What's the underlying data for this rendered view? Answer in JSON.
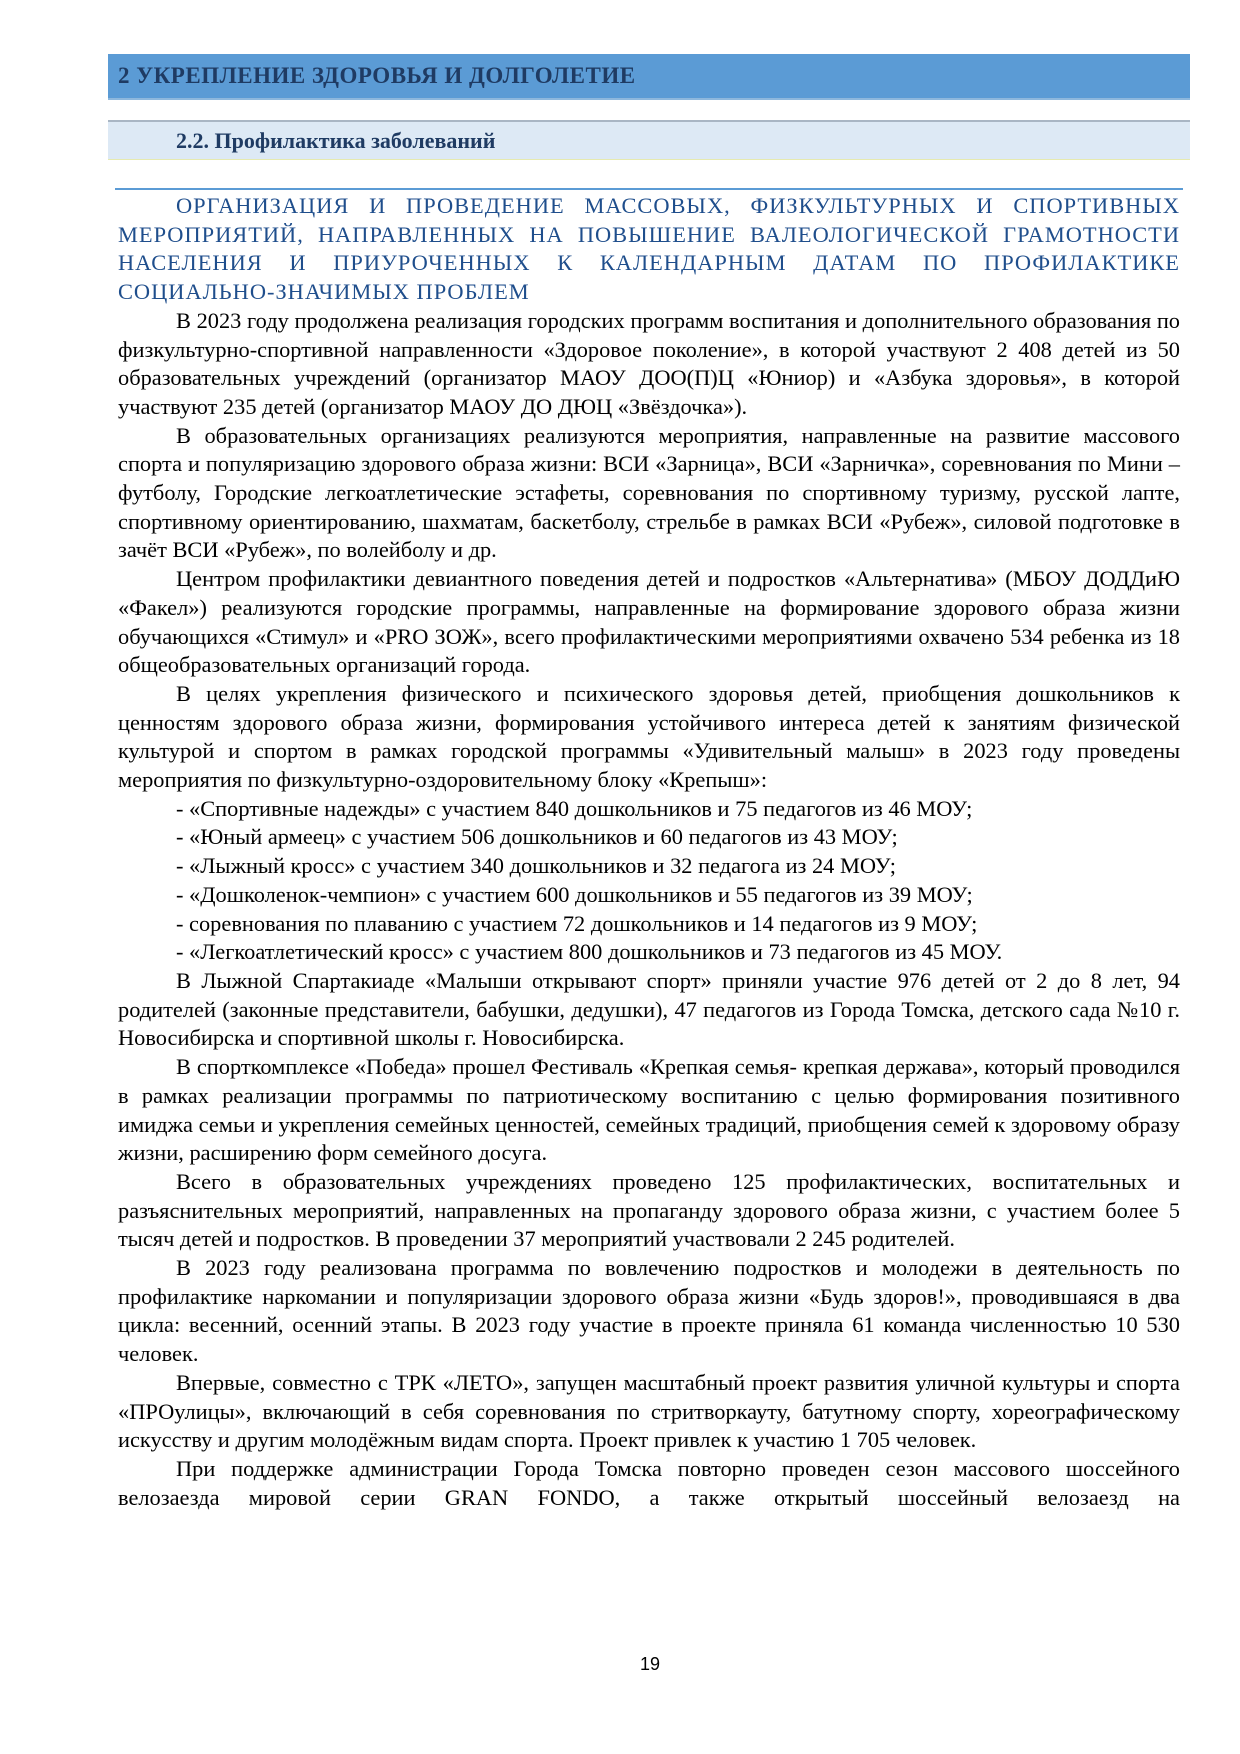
{
  "section_title": "2 УКРЕПЛЕНИЕ ЗДОРОВЬЯ И ДОЛГОЛЕТИЕ",
  "subsection_title": "2.2. Профилактика заболеваний",
  "heading": "ОРГАНИЗАЦИЯ И ПРОВЕДЕНИЕ МАССОВЫХ, ФИЗКУЛЬТУРНЫХ И СПОРТИВНЫХ МЕРОПРИЯТИЙ, НАПРАВЛЕННЫХ НА ПОВЫШЕНИЕ ВАЛЕОЛОГИЧЕСКОЙ ГРАМОТНОСТИ НАСЕЛЕНИЯ И ПРИУРОЧЕННЫХ К КАЛЕНДАРНЫМ ДАТАМ ПО ПРОФИЛАКТИКЕ СОЦИАЛЬНО-ЗНАЧИМЫХ ПРОБЛЕМ",
  "paragraphs": [
    "В 2023 году продолжена реализация городских программ воспитания и дополнительного образования по физкультурно-спортивной направленности «Здоровое поколение», в которой участвуют 2 408 детей из 50 образовательных учреждений (организатор МАОУ ДОО(П)Ц «Юниор) и «Азбука здоровья», в которой участвуют 235 детей (организатор МАОУ ДО ДЮЦ «Звёздочка»).",
    "В образовательных организациях реализуются мероприятия, направленные на развитие массового спорта и популяризацию здорового образа жизни: ВСИ «Зарница», ВСИ «Зарничка», соревнования по Мини – футболу, Городские легкоатлетические эстафеты, соревнования по спортивному туризму, русской лапте, спортивному ориентированию, шахматам, баскетболу, стрельбе в рамках ВСИ «Рубеж», силовой подготовке в зачёт ВСИ «Рубеж», по волейболу и др.",
    "Центром профилактики девиантного поведения детей и подростков «Альтернатива» (МБОУ ДОДДиЮ «Факел») реализуются городские программы, направленные на формирование здорового образа жизни обучающихся «Стимул» и «PRO ЗОЖ», всего профилактическими мероприятиями охвачено 534 ребенка из 18 общеобразовательных организаций города.",
    "В целях укрепления физического и психического здоровья детей, приобщения дошкольников к ценностям здорового образа жизни, формирования устойчивого интереса детей к занятиям физической культурой и спортом в рамках городской программы «Удивительный малыш» в 2023 году проведены мероприятия по физкультурно-оздоровительному блоку «Крепыш»:"
  ],
  "list_items": [
    "- «Спортивные надежды» с участием 840 дошкольников и 75 педагогов из 46 МОУ;",
    "- «Юный армеец» с участием 506 дошкольников и 60 педагогов из 43 МОУ;",
    "- «Лыжный кросс» с участием 340 дошкольников и 32 педагога из 24 МОУ;",
    "- «Дошколенок-чемпион» с участием 600 дошкольников и 55 педагогов из 39 МОУ;",
    "- соревнования по плаванию с участием 72 дошкольников и 14 педагогов из 9 МОУ;",
    "- «Легкоатлетический кросс» с участием 800 дошкольников и 73 педагогов из 45 МОУ."
  ],
  "paragraphs_after": [
    "В Лыжной Спартакиаде «Малыши открывают спорт» приняли участие 976 детей от 2 до 8 лет, 94 родителей (законные представители, бабушки, дедушки), 47 педагогов из Города Томска, детского сада №10 г. Новосибирска и спортивной школы г. Новосибирска.",
    "В спорткомплексе «Победа» прошел Фестиваль «Крепкая семья- крепкая держава», который проводился в рамках реализации программы по патриотическому воспитанию с целью формирования позитивного имиджа семьи и укрепления семейных ценностей, семейных традиций, приобщения семей к здоровому образу жизни, расширению форм семейного досуга.",
    "Всего в образовательных учреждениях проведено 125 профилактических, воспитательных и разъяснительных мероприятий, направленных на пропаганду здорового образа жизни, с участием более 5 тысяч детей и подростков. В проведении 37 мероприятий участвовали 2 245 родителей.",
    "В 2023 году реализована программа по вовлечению подростков и молодежи в деятельность по профилактике наркомании и популяризации здорового образа жизни «Будь здоров!», проводившаяся в два цикла: весенний, осенний этапы. В 2023 году участие в проекте приняла 61 команда численностью 10 530 человек.",
    "Впервые, совместно с ТРК «ЛЕТО», запущен масштабный проект развития уличной культуры и спорта «ПРОулицы», включающий в себя соревнования по стритворкауту, батутному спорту, хореографическому искусству и другим молодёжным видам спорта. Проект привлек к участию 1 705 человек.",
    "При поддержке администрации Города Томска повторно проведен сезон массового шоссейного велозаезда мировой серии GRAN FONDO, а также открытый шоссейный велозаезд на"
  ],
  "page_number": "19",
  "colors": {
    "section_bar": "#5b9bd5",
    "subsection_bar": "#dde9f5",
    "heading_text": "#1f4e8c"
  }
}
